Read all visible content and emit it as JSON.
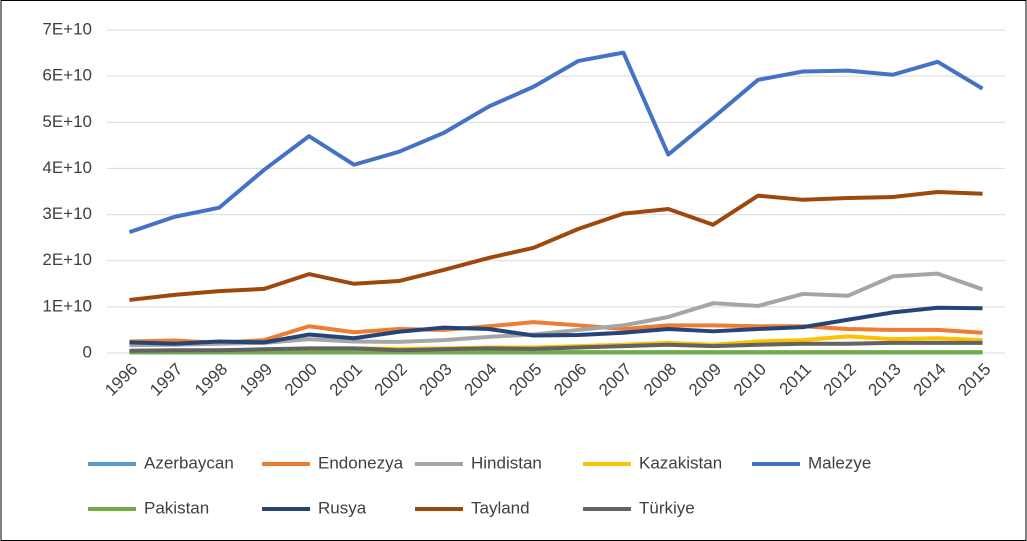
{
  "chart_data": {
    "type": "line",
    "x": [
      "1996",
      "1997",
      "1998",
      "1999",
      "2000",
      "2001",
      "2002",
      "2003",
      "2004",
      "2005",
      "2006",
      "2007",
      "2008",
      "2009",
      "2010",
      "2011",
      "2012",
      "2013",
      "2014",
      "2015"
    ],
    "ylim": [
      0,
      70000000000
    ],
    "yticks": [
      0,
      {
        "value": 10000000000,
        "label": "1E+10"
      },
      {
        "value": 20000000000,
        "label": "2E+10"
      },
      {
        "value": 30000000000,
        "label": "3E+10"
      },
      {
        "value": 40000000000,
        "label": "4E+10"
      },
      {
        "value": 50000000000,
        "label": "5E+10"
      },
      {
        "value": 60000000000,
        "label": "6E+10"
      },
      {
        "value": 70000000000,
        "label": "7E+10"
      }
    ],
    "grid": true,
    "legend": "bottom",
    "series": [
      {
        "name": "Azerbaycan",
        "color": "#5b9bd5",
        "values": [
          100000000.0,
          100000000.0,
          100000000.0,
          100000000.0,
          100000000.0,
          100000000.0,
          100000000.0,
          100000000.0,
          100000000.0,
          100000000.0,
          100000000.0,
          100000000.0,
          100000000.0,
          100000000.0,
          100000000.0,
          100000000.0,
          100000000.0,
          100000000.0,
          100000000.0,
          100000000.0
        ]
      },
      {
        "name": "Endonezya",
        "color": "#ed7d31",
        "values": [
          2500000000.0,
          2700000000.0,
          2200000000.0,
          2800000000.0,
          5800000000.0,
          4500000000.0,
          5200000000.0,
          5000000000.0,
          5800000000.0,
          6700000000.0,
          6000000000.0,
          5200000000.0,
          6000000000.0,
          6000000000.0,
          5800000000.0,
          5800000000.0,
          5200000000.0,
          5000000000.0,
          5000000000.0,
          4400000000.0
        ]
      },
      {
        "name": "Hindistan",
        "color": "#a5a5a5",
        "values": [
          1700000000.0,
          1800000000.0,
          2000000000.0,
          2200000000.0,
          3000000000.0,
          2500000000.0,
          2400000000.0,
          2800000000.0,
          3500000000.0,
          4000000000.0,
          5000000000.0,
          6000000000.0,
          7800000000.0,
          10800000000.0,
          10200000000.0,
          12800000000.0,
          12400000000.0,
          16600000000.0,
          17200000000.0,
          13800000000.0
        ]
      },
      {
        "name": "Kazakistan",
        "color": "#ffc000",
        "values": [
          200000000.0,
          300000000.0,
          400000000.0,
          600000000.0,
          1000000000.0,
          1000000000.0,
          900000000.0,
          1000000000.0,
          1200000000.0,
          1200000000.0,
          1500000000.0,
          1800000000.0,
          2200000000.0,
          1800000000.0,
          2500000000.0,
          2800000000.0,
          3600000000.0,
          3000000000.0,
          3200000000.0,
          2800000000.0
        ]
      },
      {
        "name": "Malezye",
        "color": "#4472c4",
        "values": [
          26200000000.0,
          29500000000.0,
          31500000000.0,
          39700000000.0,
          47000000000.0,
          40800000000.0,
          43600000000.0,
          47700000000.0,
          53400000000.0,
          57700000000.0,
          63300000000.0,
          65100000000.0,
          43000000000.0,
          51000000000.0,
          59200000000.0,
          61000000000.0,
          61200000000.0,
          60300000000.0,
          63100000000.0,
          57300000000.0
        ]
      },
      {
        "name": "Pakistan",
        "color": "#70ad47",
        "values": [
          200000000.0,
          200000000.0,
          200000000.0,
          200000000.0,
          200000000.0,
          200000000.0,
          200000000.0,
          200000000.0,
          200000000.0,
          200000000.0,
          200000000.0,
          200000000.0,
          200000000.0,
          200000000.0,
          200000000.0,
          200000000.0,
          200000000.0,
          200000000.0,
          200000000.0,
          200000000.0
        ]
      },
      {
        "name": "Rusya",
        "color": "#264478",
        "values": [
          2300000000.0,
          2000000000.0,
          2500000000.0,
          2300000000.0,
          4000000000.0,
          3200000000.0,
          4600000000.0,
          5500000000.0,
          5200000000.0,
          3800000000.0,
          3900000000.0,
          4400000000.0,
          5200000000.0,
          4700000000.0,
          5200000000.0,
          5600000000.0,
          7200000000.0,
          8800000000.0,
          9800000000.0,
          9700000000.0
        ]
      },
      {
        "name": "Tayland",
        "color": "#9e480e",
        "values": [
          11500000000.0,
          12600000000.0,
          13400000000.0,
          13900000000.0,
          17100000000.0,
          15000000000.0,
          15600000000.0,
          18000000000.0,
          20600000000.0,
          22800000000.0,
          26900000000.0,
          30200000000.0,
          31200000000.0,
          27800000000.0,
          34100000000.0,
          33200000000.0,
          33600000000.0,
          33800000000.0,
          34900000000.0,
          34500000000.0
        ]
      },
      {
        "name": "Türkiye",
        "color": "#636363",
        "values": [
          500000000.0,
          600000000.0,
          600000000.0,
          800000000.0,
          1000000000.0,
          1000000000.0,
          600000000.0,
          800000000.0,
          1000000000.0,
          900000000.0,
          1200000000.0,
          1500000000.0,
          1800000000.0,
          1500000000.0,
          1800000000.0,
          2000000000.0,
          2000000000.0,
          2200000000.0,
          2200000000.0,
          2200000000.0
        ]
      }
    ]
  }
}
